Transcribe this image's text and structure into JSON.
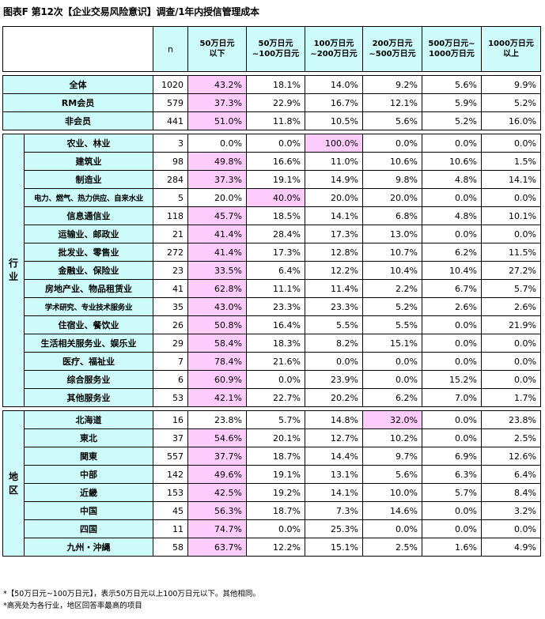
{
  "title": "图表F 第12次【企业交易风险意识】调查/1年内授信管理成本",
  "chart_data": {
    "type": "table",
    "header": {
      "n": "n",
      "columns": [
        "50万日元\n以下",
        "50万日元\n~100万日元",
        "100万日元\n~200万日元",
        "200万日元\n~500万日元",
        "500万日元~\n1000万日元",
        "1000万日元\n以上"
      ]
    },
    "groups": [
      {
        "label": "",
        "rows": [
          {
            "name": "全体",
            "n": "1020",
            "values": [
              "43.2%",
              "18.1%",
              "14.0%",
              "9.2%",
              "5.6%",
              "9.9%"
            ],
            "hi": 0
          },
          {
            "name": "RM会员",
            "n": "579",
            "values": [
              "37.3%",
              "22.9%",
              "16.7%",
              "12.1%",
              "5.9%",
              "5.2%"
            ],
            "hi": 0
          },
          {
            "name": "非会员",
            "n": "441",
            "values": [
              "51.0%",
              "11.8%",
              "10.5%",
              "5.6%",
              "5.2%",
              "16.0%"
            ],
            "hi": 0
          }
        ]
      },
      {
        "label": "行业",
        "rows": [
          {
            "name": "农业、林业",
            "n": "3",
            "values": [
              "0.0%",
              "0.0%",
              "100.0%",
              "0.0%",
              "0.0%",
              "0.0%"
            ],
            "hi": 2
          },
          {
            "name": "建筑业",
            "n": "98",
            "values": [
              "49.8%",
              "16.6%",
              "11.0%",
              "10.6%",
              "10.6%",
              "1.5%"
            ],
            "hi": 0
          },
          {
            "name": "制造业",
            "n": "284",
            "values": [
              "37.3%",
              "19.1%",
              "14.9%",
              "9.8%",
              "4.8%",
              "14.1%"
            ],
            "hi": 0
          },
          {
            "name": "电力、燃气、热力供应、自来水业",
            "n": "5",
            "values": [
              "20.0%",
              "40.0%",
              "20.0%",
              "20.0%",
              "0.0%",
              "0.0%"
            ],
            "hi": 1,
            "small": true
          },
          {
            "name": "信息通信业",
            "n": "118",
            "values": [
              "45.7%",
              "18.5%",
              "14.1%",
              "6.8%",
              "4.8%",
              "10.1%"
            ],
            "hi": 0
          },
          {
            "name": "运输业、邮政业",
            "n": "21",
            "values": [
              "41.4%",
              "28.4%",
              "17.3%",
              "13.0%",
              "0.0%",
              "0.0%"
            ],
            "hi": 0
          },
          {
            "name": "批发业、零售业",
            "n": "272",
            "values": [
              "41.4%",
              "17.3%",
              "12.8%",
              "10.7%",
              "6.2%",
              "11.5%"
            ],
            "hi": 0
          },
          {
            "name": "金融业、保险业",
            "n": "23",
            "values": [
              "33.5%",
              "6.4%",
              "12.2%",
              "10.4%",
              "10.4%",
              "27.2%"
            ],
            "hi": 0
          },
          {
            "name": "房地产业、物品租赁业",
            "n": "41",
            "values": [
              "62.8%",
              "11.1%",
              "11.4%",
              "2.2%",
              "6.7%",
              "5.7%"
            ],
            "hi": 0
          },
          {
            "name": "学术研究、专业技术服务业",
            "n": "35",
            "values": [
              "43.0%",
              "23.3%",
              "23.3%",
              "5.2%",
              "2.6%",
              "2.6%"
            ],
            "hi": 0,
            "small": true
          },
          {
            "name": "住宿业、餐饮业",
            "n": "26",
            "values": [
              "50.8%",
              "16.4%",
              "5.5%",
              "5.5%",
              "0.0%",
              "21.9%"
            ],
            "hi": 0
          },
          {
            "name": "生活相关服务业、娱乐业",
            "n": "29",
            "values": [
              "58.4%",
              "18.3%",
              "8.2%",
              "15.1%",
              "0.0%",
              "0.0%"
            ],
            "hi": 0
          },
          {
            "name": "医疗、福祉业",
            "n": "7",
            "values": [
              "78.4%",
              "21.6%",
              "0.0%",
              "0.0%",
              "0.0%",
              "0.0%"
            ],
            "hi": 0
          },
          {
            "name": "综合服务业",
            "n": "6",
            "values": [
              "60.9%",
              "0.0%",
              "23.9%",
              "0.0%",
              "15.2%",
              "0.0%"
            ],
            "hi": 0
          },
          {
            "name": "其他服务业",
            "n": "53",
            "values": [
              "42.1%",
              "22.7%",
              "20.2%",
              "6.2%",
              "7.0%",
              "1.7%"
            ],
            "hi": 0
          }
        ]
      },
      {
        "label": "地区",
        "rows": [
          {
            "name": "北海道",
            "n": "16",
            "values": [
              "23.8%",
              "5.7%",
              "14.8%",
              "32.0%",
              "0.0%",
              "23.8%"
            ],
            "hi": 3
          },
          {
            "name": "東北",
            "n": "37",
            "values": [
              "54.6%",
              "20.1%",
              "12.7%",
              "10.2%",
              "0.0%",
              "2.5%"
            ],
            "hi": 0
          },
          {
            "name": "関東",
            "n": "557",
            "values": [
              "37.7%",
              "18.7%",
              "14.4%",
              "9.7%",
              "6.9%",
              "12.6%"
            ],
            "hi": 0
          },
          {
            "name": "中部",
            "n": "142",
            "values": [
              "49.6%",
              "19.1%",
              "13.1%",
              "5.6%",
              "6.3%",
              "6.4%"
            ],
            "hi": 0
          },
          {
            "name": "近畿",
            "n": "153",
            "values": [
              "42.5%",
              "19.2%",
              "14.1%",
              "10.0%",
              "5.7%",
              "8.4%"
            ],
            "hi": 0
          },
          {
            "name": "中国",
            "n": "45",
            "values": [
              "56.3%",
              "18.7%",
              "7.3%",
              "14.6%",
              "0.0%",
              "3.2%"
            ],
            "hi": 0
          },
          {
            "name": "四国",
            "n": "11",
            "values": [
              "74.7%",
              "0.0%",
              "25.3%",
              "0.0%",
              "0.0%",
              "0.0%"
            ],
            "hi": 0
          },
          {
            "name": "九州・沖縄",
            "n": "58",
            "values": [
              "63.7%",
              "12.2%",
              "15.1%",
              "2.5%",
              "1.6%",
              "4.9%"
            ],
            "hi": 0
          }
        ]
      }
    ]
  },
  "notes": [
    "*【50万日元~100万日元】，表示50万日元以上100万日元以下。其他相同。",
    "*高亮处为各行业，地区回答率最高的项目"
  ],
  "colors": {
    "header_bg": "#ccfbfa",
    "highlight": "#fdccfd",
    "border": "#000000"
  }
}
